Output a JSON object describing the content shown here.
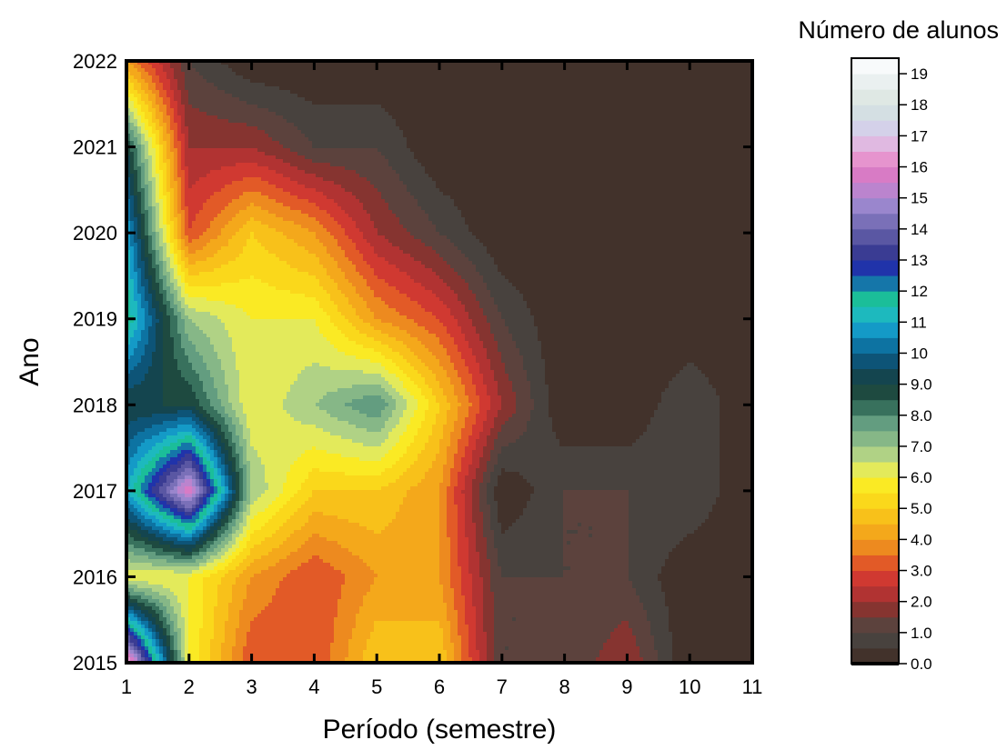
{
  "chart_data": {
    "type": "heatmap",
    "title": "",
    "xlabel": "Período (semestre)",
    "ylabel": "Ano",
    "x": [
      1,
      2,
      3,
      4,
      5,
      6,
      7,
      8,
      9,
      10,
      11
    ],
    "y": [
      2015,
      2016,
      2017,
      2018,
      2019,
      2020,
      2021,
      2022
    ],
    "x_ticks": [
      "1",
      "2",
      "3",
      "4",
      "5",
      "6",
      "7",
      "8",
      "9",
      "10",
      "11"
    ],
    "y_ticks": [
      "2015",
      "2016",
      "2017",
      "2018",
      "2019",
      "2020",
      "2021",
      "2022"
    ],
    "xlim": [
      1,
      11
    ],
    "ylim": [
      2015,
      2022
    ],
    "z": [
      [
        17,
        6,
        3,
        3,
        5,
        5,
        1,
        1,
        2,
        0,
        0
      ],
      [
        6,
        6,
        4,
        3,
        4,
        4,
        1,
        1,
        1,
        0,
        0
      ],
      [
        11,
        16,
        7,
        5,
        5,
        4,
        0,
        1,
        1,
        1,
        0
      ],
      [
        9,
        9,
        6,
        7,
        8,
        5,
        2,
        0,
        0,
        1,
        0
      ],
      [
        12,
        7,
        6,
        6,
        4,
        3,
        1,
        0,
        0,
        0,
        0
      ],
      [
        11,
        3,
        5,
        4,
        2,
        1,
        0,
        0,
        0,
        0,
        0
      ],
      [
        9,
        2,
        2,
        1,
        1,
        0,
        0,
        0,
        0,
        0,
        0
      ],
      [
        4,
        1,
        0,
        0,
        0,
        0,
        0,
        0,
        0,
        0,
        0
      ]
    ],
    "grid": false,
    "colorbar": {
      "title": "Número de alunos",
      "placement": "right",
      "min": 0,
      "max": 19.5,
      "tick_values": [
        0,
        1,
        2,
        3,
        4,
        5,
        6,
        7,
        8,
        9,
        10,
        11,
        12,
        13,
        14,
        15,
        16,
        17,
        18,
        19
      ],
      "tick_labels": [
        "0.0",
        "1.0",
        "2.0",
        "3.0",
        "4.0",
        "5.0",
        "6.0",
        "7.0",
        "8.0",
        "9.0",
        "10",
        "11",
        "12",
        "13",
        "14",
        "15",
        "16",
        "17",
        "18",
        "19"
      ],
      "color_stops": [
        [
          0,
          "#3e2a22"
        ],
        [
          0.5,
          "#453a33"
        ],
        [
          1,
          "#4a4a48"
        ],
        [
          1.5,
          "#6e3a32"
        ],
        [
          2,
          "#9e2e2e"
        ],
        [
          2.5,
          "#c43835"
        ],
        [
          3,
          "#dc3a2c"
        ],
        [
          3.5,
          "#e87a22"
        ],
        [
          4,
          "#f19a1c"
        ],
        [
          4.5,
          "#f6b51a"
        ],
        [
          5,
          "#f9cc1a"
        ],
        [
          5.5,
          "#fbe31c"
        ],
        [
          6,
          "#f8f02c"
        ],
        [
          6.5,
          "#cde48a"
        ],
        [
          7,
          "#92bf80"
        ],
        [
          7.5,
          "#7aaf8e"
        ],
        [
          8,
          "#4b8a72"
        ],
        [
          8.5,
          "#245848"
        ],
        [
          9,
          "#183c38"
        ],
        [
          9.5,
          "#0f4d66"
        ],
        [
          10,
          "#0a5a88"
        ],
        [
          10.5,
          "#0f8bbb"
        ],
        [
          11,
          "#18a9d3"
        ],
        [
          11.5,
          "#22c8a8"
        ],
        [
          12,
          "#14b38a"
        ],
        [
          12.5,
          "#1538c8"
        ],
        [
          13,
          "#2a2d8c"
        ],
        [
          13.5,
          "#4a4a9a"
        ],
        [
          14,
          "#6a63ac"
        ],
        [
          14.5,
          "#8a7cc4"
        ],
        [
          15,
          "#a98fd6"
        ],
        [
          15.5,
          "#cc78c6"
        ],
        [
          16,
          "#e47ec4"
        ],
        [
          16.5,
          "#e7a9d8"
        ],
        [
          17,
          "#d8c9ea"
        ],
        [
          17.5,
          "#cfd9e7"
        ],
        [
          18,
          "#d9e4de"
        ],
        [
          19,
          "#f0f4f6"
        ],
        [
          19.5,
          "#ffffff"
        ]
      ]
    }
  }
}
